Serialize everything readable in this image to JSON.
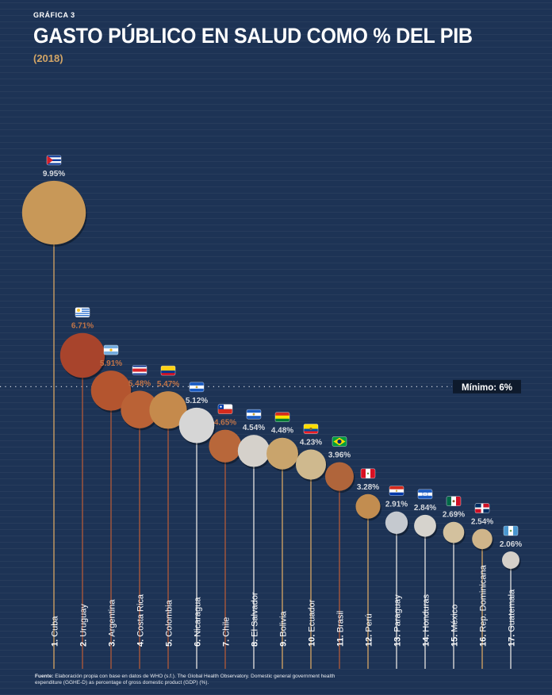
{
  "header": {
    "kicker": "GRÁFICA 3",
    "title": "GASTO PÚBLICO EN SALUD COMO % DEL PIB",
    "subtitle": "(2018)"
  },
  "source": {
    "label": "Fuente:",
    "text": "Elaboración propia con base en datos de WHO (s.f.). The Global Health Observatory. Domestic general government health expenditure (GGHE-D) as percentage of gross domestic product (GDP) (%)."
  },
  "colors": {
    "background": "#1d3355",
    "line_tan": "#c99d62",
    "line_rust": "#a8573a",
    "line_white": "#d8d8d8"
  },
  "chart_data": {
    "type": "bubble",
    "reference_line": {
      "value": 6,
      "label": "Mínimo: 6%"
    },
    "series": [
      {
        "rank": "1.",
        "country": "Cuba",
        "value": 9.95,
        "value_label": "9.95%",
        "color": "#c89858",
        "flag": "cuba-flag-icon"
      },
      {
        "rank": "2.",
        "country": "Uruguay",
        "value": 6.71,
        "value_label": "6.71%",
        "color": "#a8442c",
        "flag": "uruguay-flag-icon"
      },
      {
        "rank": "3.",
        "country": "Argentina",
        "value": 5.91,
        "value_label": "5.91%",
        "color": "#b4552f",
        "flag": "argentina-flag-icon"
      },
      {
        "rank": "4.",
        "country": "Costa Rica",
        "value": 5.48,
        "value_label": "5.48%",
        "color": "#ba6236",
        "flag": "costa-rica-flag-icon"
      },
      {
        "rank": "5.",
        "country": "Colombia",
        "value": 5.47,
        "value_label": "5.47%",
        "color": "#c58a4c",
        "flag": "colombia-flag-icon"
      },
      {
        "rank": "6.",
        "country": "Nicaragua",
        "value": 5.12,
        "value_label": "5.12%",
        "color": "#d6d6d6",
        "flag": "nicaragua-flag-icon"
      },
      {
        "rank": "7.",
        "country": "Chile",
        "value": 4.65,
        "value_label": "4.65%",
        "color": "#b8673a",
        "flag": "chile-flag-icon"
      },
      {
        "rank": "8.",
        "country": "El Salvador",
        "value": 4.54,
        "value_label": "4.54%",
        "color": "#d5d1cb",
        "flag": "el-salvador-flag-icon"
      },
      {
        "rank": "9.",
        "country": "Bolivia",
        "value": 4.48,
        "value_label": "4.48%",
        "color": "#c9a46c",
        "flag": "bolivia-flag-icon"
      },
      {
        "rank": "10.",
        "country": "Ecuador",
        "value": 4.23,
        "value_label": "4.23%",
        "color": "#cfb98e",
        "flag": "ecuador-flag-icon"
      },
      {
        "rank": "11.",
        "country": "Brasil",
        "value": 3.96,
        "value_label": "3.96%",
        "color": "#b0653b",
        "flag": "brasil-flag-icon"
      },
      {
        "rank": "12.",
        "country": "Perú",
        "value": 3.28,
        "value_label": "3.28%",
        "color": "#c28d50",
        "flag": "peru-flag-icon"
      },
      {
        "rank": "13.",
        "country": "Paraguay",
        "value": 2.91,
        "value_label": "2.91%",
        "color": "#c5c9cf",
        "flag": "paraguay-flag-icon"
      },
      {
        "rank": "14.",
        "country": "Honduras",
        "value": 2.84,
        "value_label": "2.84%",
        "color": "#d6d3cd",
        "flag": "honduras-flag-icon"
      },
      {
        "rank": "15.",
        "country": "México",
        "value": 2.69,
        "value_label": "2.69%",
        "color": "#d3c19e",
        "flag": "mexico-flag-icon"
      },
      {
        "rank": "16.",
        "country": "Rep. Dominicana",
        "value": 2.54,
        "value_label": "2.54%",
        "color": "#cfb58a",
        "flag": "rep-dominicana-flag-icon"
      },
      {
        "rank": "17.",
        "country": "Guatemala",
        "value": 2.06,
        "value_label": "2.06%",
        "color": "#d5d0c9",
        "flag": "guatemala-flag-icon"
      }
    ]
  }
}
